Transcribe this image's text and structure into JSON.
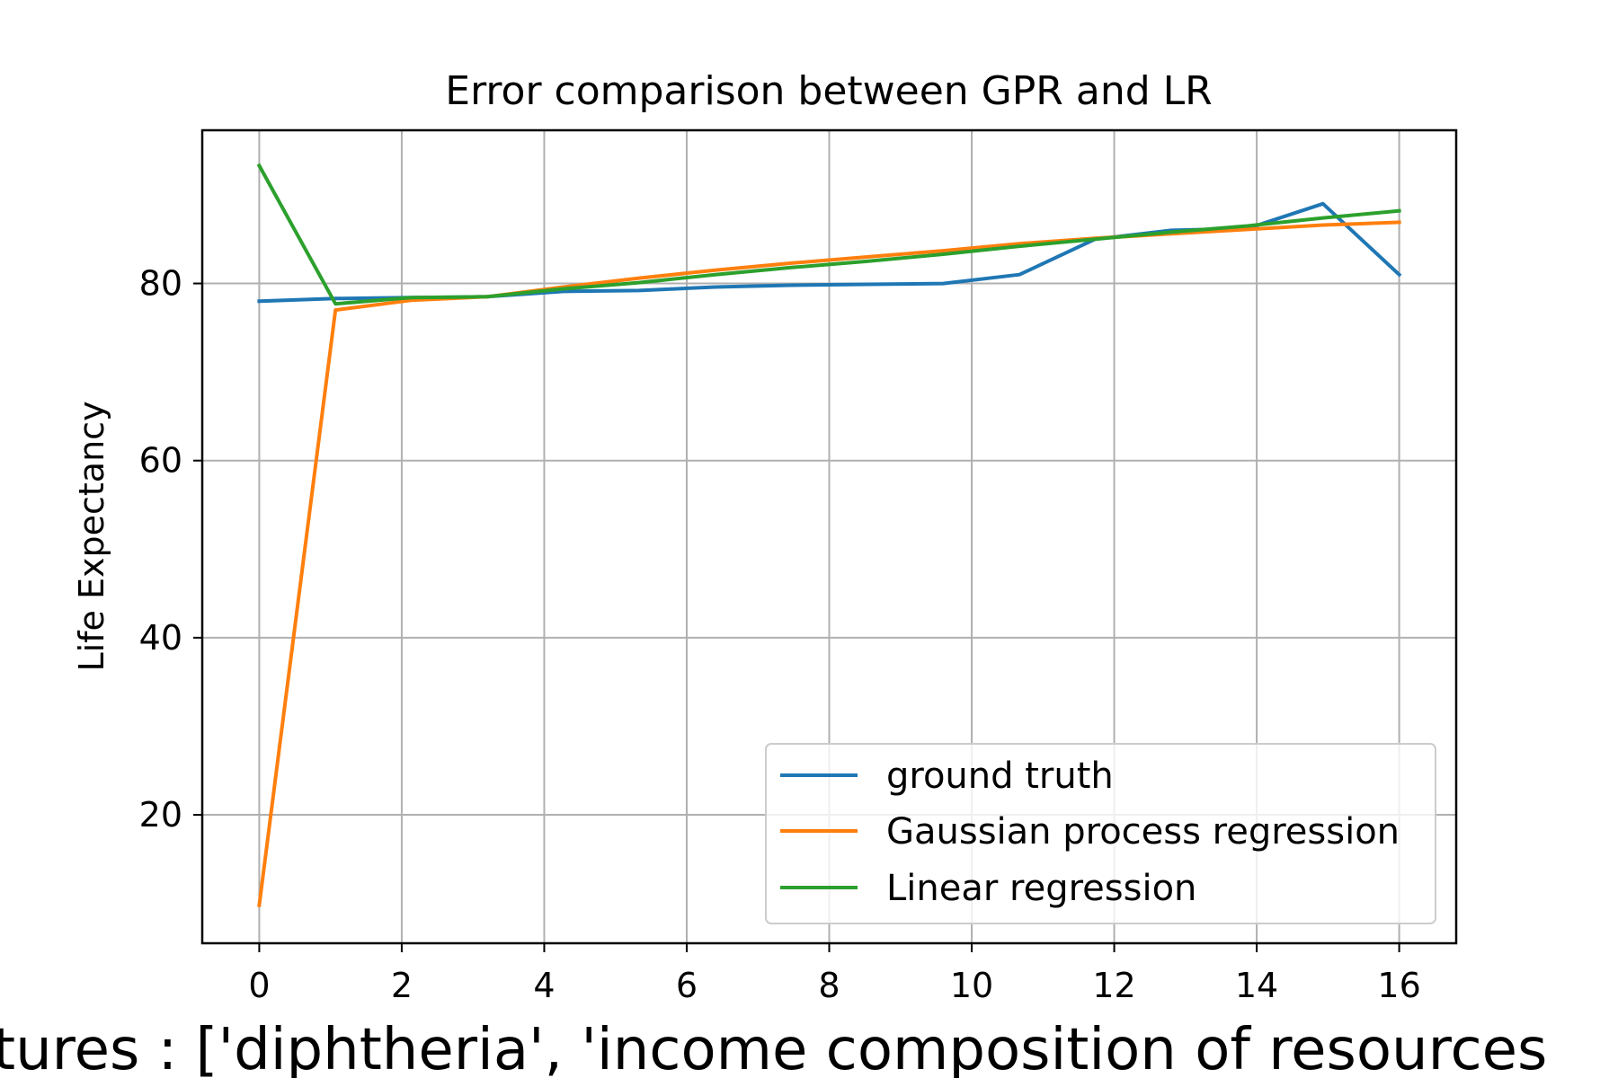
{
  "chart_data": {
    "type": "line",
    "title": "Error comparison between GPR and LR",
    "xlabel": "tures : ['diphtheria', 'income  composition  of  resources",
    "ylabel": "Life Expectancy",
    "xlim": [
      -0.8,
      16.8
    ],
    "ylim": [
      5.5,
      97.3
    ],
    "xticks": [
      0,
      2,
      4,
      6,
      8,
      10,
      12,
      14,
      16
    ],
    "yticks": [
      20,
      40,
      60,
      80
    ],
    "grid": true,
    "legend_position": "lower right",
    "x": [
      0,
      1.07,
      2.13,
      3.2,
      4.27,
      5.33,
      6.4,
      7.47,
      8.53,
      9.6,
      10.67,
      11.73,
      12.8,
      13.87,
      14.93,
      16
    ],
    "series": [
      {
        "name": "ground truth",
        "color": "#1f77b4",
        "values": [
          78.0,
          78.3,
          78.4,
          78.5,
          79.1,
          79.2,
          79.6,
          79.8,
          79.9,
          80.0,
          81.0,
          85.0,
          86.0,
          86.2,
          89.0,
          81.0
        ]
      },
      {
        "name": "Gaussian process regression",
        "color": "#ff7f0e",
        "values": [
          9.8,
          77.0,
          78.1,
          78.5,
          79.6,
          80.6,
          81.5,
          82.3,
          83.0,
          83.7,
          84.5,
          85.1,
          85.6,
          86.1,
          86.6,
          86.9
        ]
      },
      {
        "name": "Linear regression",
        "color": "#2ca02c",
        "values": [
          93.3,
          77.7,
          78.4,
          78.5,
          79.4,
          80.1,
          81.0,
          81.8,
          82.5,
          83.3,
          84.2,
          85.0,
          85.8,
          86.5,
          87.4,
          88.2
        ]
      }
    ]
  }
}
